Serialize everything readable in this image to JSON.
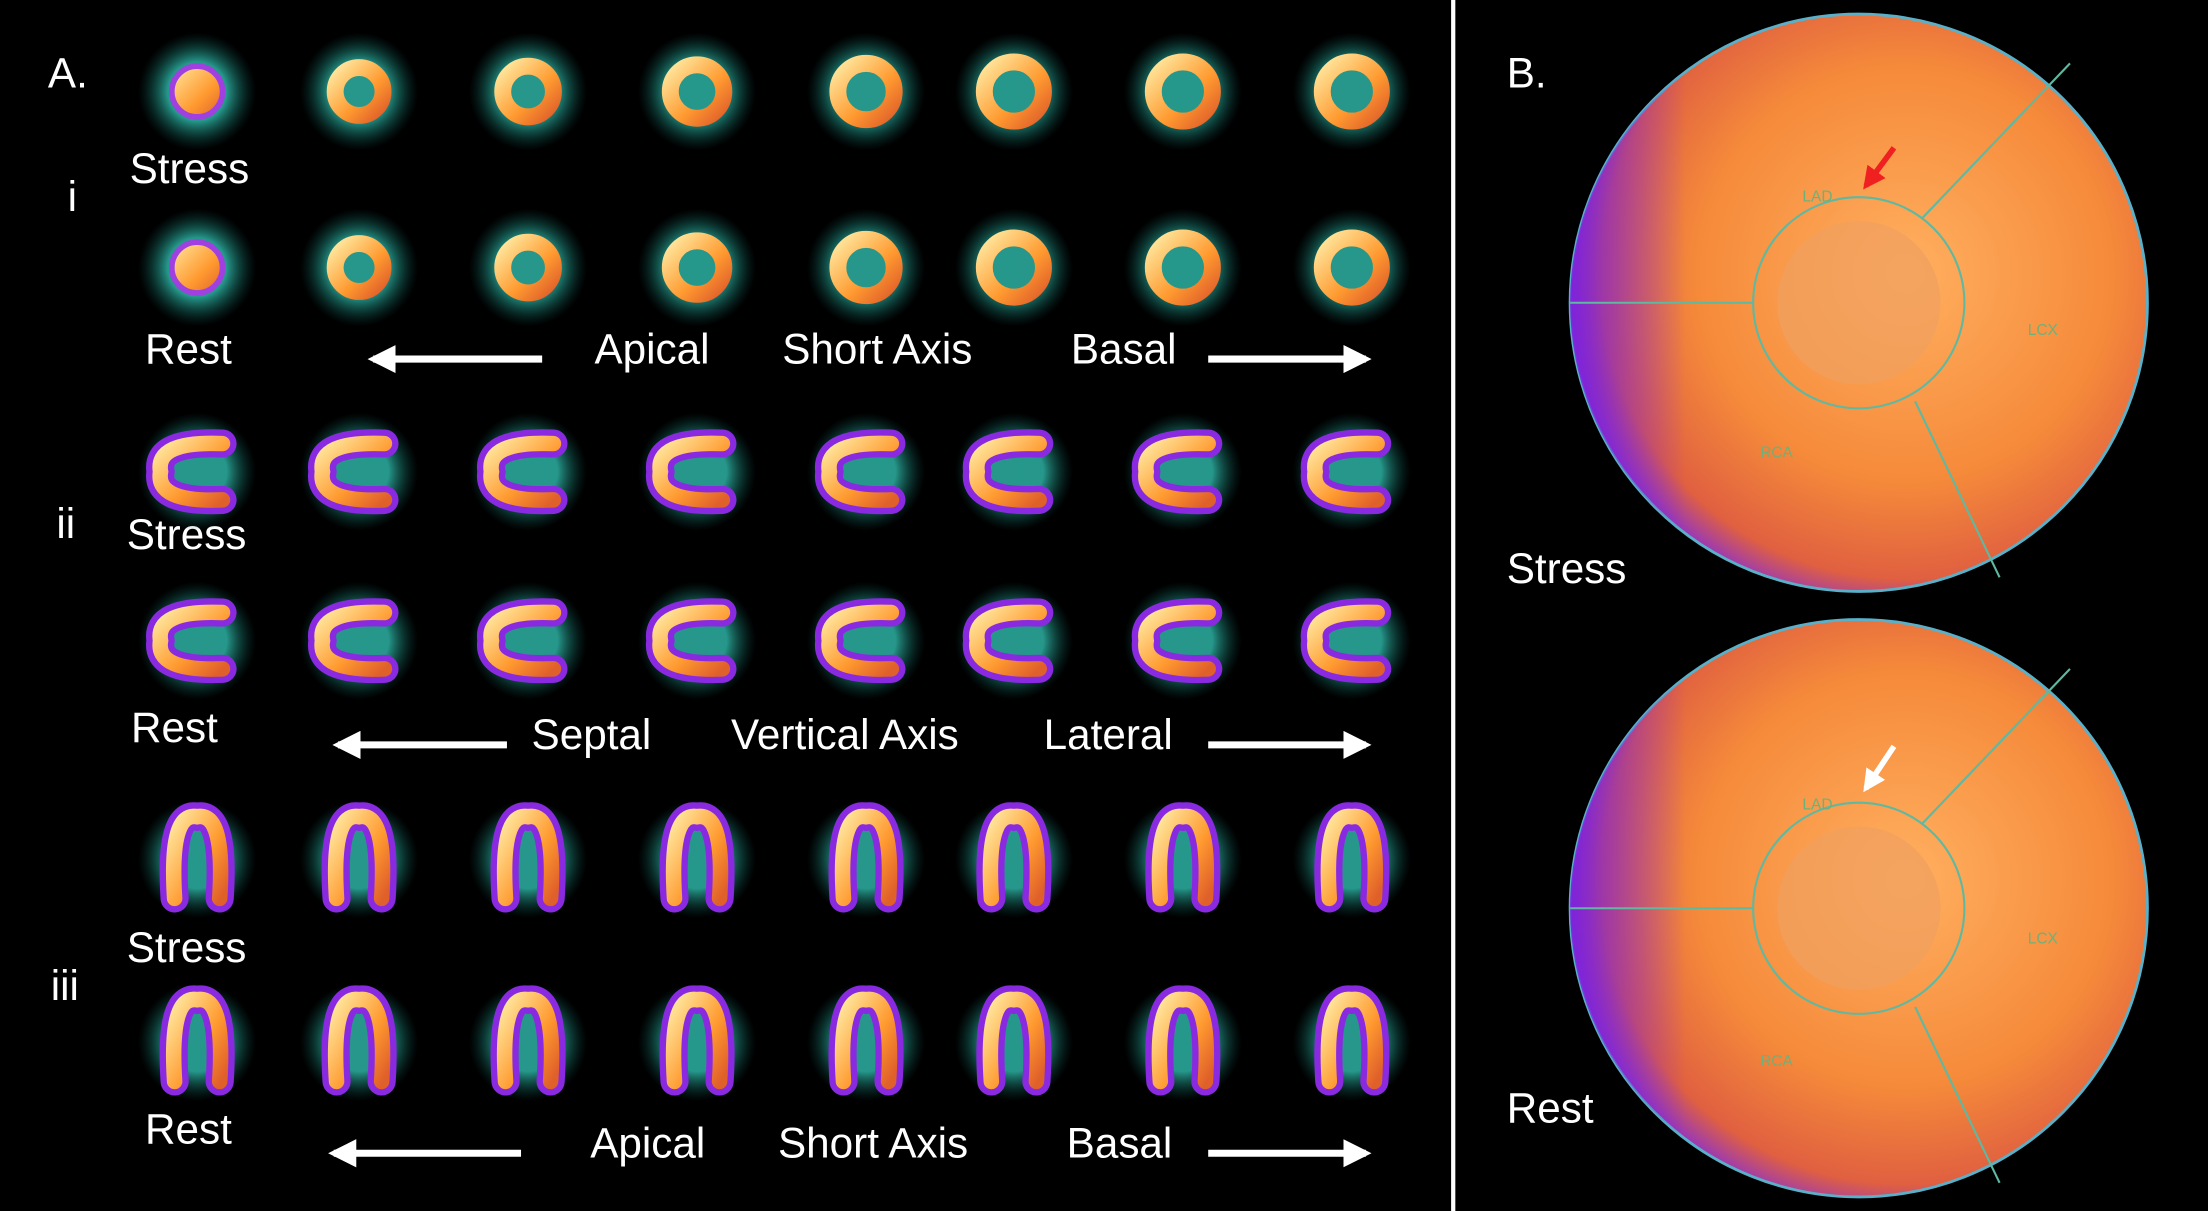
{
  "panel_a": {
    "label": "A.",
    "groups": [
      {
        "label": "i",
        "rows": [
          "Stress",
          "Rest"
        ],
        "axis": [
          "Apical",
          "Short Axis",
          "Basal"
        ]
      },
      {
        "label": "ii",
        "rows": [
          "Stress",
          "Rest"
        ],
        "axis": [
          "Septal",
          "Vertical Axis",
          "Lateral"
        ]
      },
      {
        "label": "iii",
        "rows": [
          "Stress",
          "Rest"
        ],
        "axis": [
          "Apical",
          "Short Axis",
          "Basal"
        ]
      }
    ]
  },
  "panel_b": {
    "label": "B.",
    "maps": [
      {
        "label": "Stress",
        "regions": [
          "LAD",
          "LCX",
          "RCA"
        ]
      },
      {
        "label": "Rest",
        "regions": [
          "LAD",
          "LCX",
          "RCA"
        ]
      }
    ]
  }
}
